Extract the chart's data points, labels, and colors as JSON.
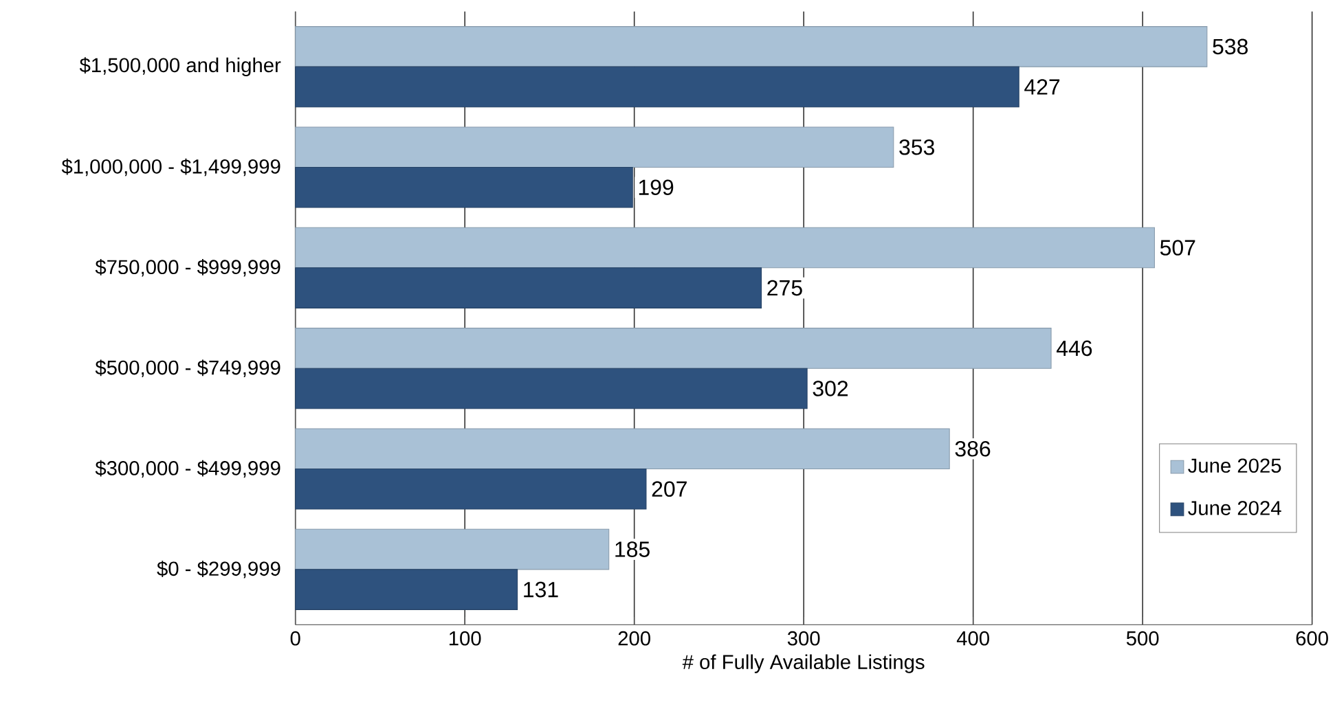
{
  "chart_data": {
    "type": "bar",
    "orientation": "horizontal",
    "categories": [
      "$1,500,000 and higher",
      "$1,000,000 - $1,499,999",
      "$750,000 - $999,999",
      "$500,000 - $749,999",
      "$300,000 - $499,999",
      "$0 - $299,999"
    ],
    "series": [
      {
        "name": "June 2025",
        "color": "#a9c1d6",
        "values": [
          538,
          353,
          507,
          446,
          386,
          185
        ]
      },
      {
        "name": "June 2024",
        "color": "#2e527e",
        "values": [
          427,
          199,
          275,
          302,
          207,
          131
        ]
      }
    ],
    "xlabel": "# of Fully Available Listings",
    "xlim": [
      0,
      600
    ],
    "xticks": [
      0,
      100,
      200,
      300,
      400,
      500,
      600
    ],
    "grid": "x",
    "legend": "bottom right",
    "data_labels": true
  }
}
